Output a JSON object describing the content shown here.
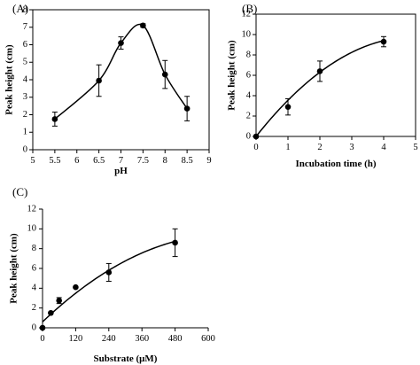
{
  "chart_data": [
    {
      "id": "A",
      "panel_label": "(A)",
      "type": "line",
      "title": "",
      "xlabel": "pH",
      "ylabel": "Peak height (cm)",
      "xlim": [
        5,
        9
      ],
      "ylim": [
        0,
        8
      ],
      "xticks": [
        5,
        5.5,
        6,
        6.5,
        7,
        7.5,
        8,
        8.5,
        9
      ],
      "yticks": [
        0,
        1,
        2,
        3,
        4,
        5,
        6,
        7,
        8
      ],
      "grid": false,
      "legend": "none",
      "series": [
        {
          "points": [
            {
              "x": 5.5,
              "y": 1.75,
              "err": 0.4
            },
            {
              "x": 6.5,
              "y": 3.95,
              "err": 0.9
            },
            {
              "x": 7.0,
              "y": 6.1,
              "err": 0.35
            },
            {
              "x": 7.5,
              "y": 7.1,
              "err": 0.1
            },
            {
              "x": 8.0,
              "y": 4.3,
              "err": 0.8
            },
            {
              "x": 8.5,
              "y": 2.35,
              "err": 0.7
            }
          ],
          "fit": "smooth"
        }
      ]
    },
    {
      "id": "B",
      "panel_label": "(B)",
      "type": "scatter",
      "title": "",
      "xlabel": "Incubation time (h)",
      "ylabel": "Peak height (cm)",
      "xlim": [
        0,
        5
      ],
      "ylim": [
        0,
        12
      ],
      "xticks": [
        0,
        1,
        2,
        3,
        4,
        5
      ],
      "yticks": [
        0,
        2,
        4,
        6,
        8,
        10,
        12
      ],
      "grid": false,
      "legend": "none",
      "series": [
        {
          "points": [
            {
              "x": 0,
              "y": 0,
              "err": 0
            },
            {
              "x": 1,
              "y": 2.9,
              "err": 0.8
            },
            {
              "x": 2,
              "y": 6.4,
              "err": 1.0
            },
            {
              "x": 4,
              "y": 9.3,
              "err": 0.5
            }
          ],
          "fit": {
            "type": "quadratic",
            "coef": [
              0,
              3.95,
              -0.4
            ]
          }
        }
      ]
    },
    {
      "id": "C",
      "panel_label": "(C)",
      "type": "scatter",
      "title": "",
      "xlabel": "Substrate (μM)",
      "ylabel": "Peak height (cm)",
      "xlim": [
        0,
        600
      ],
      "ylim": [
        0,
        12
      ],
      "xticks": [
        0,
        120,
        240,
        360,
        480,
        600
      ],
      "yticks": [
        0,
        2,
        4,
        6,
        8,
        10,
        12
      ],
      "grid": false,
      "legend": "none",
      "series": [
        {
          "points": [
            {
              "x": 0,
              "y": 0,
              "err": 0
            },
            {
              "x": 30,
              "y": 1.5,
              "err": 0
            },
            {
              "x": 60,
              "y": 2.75,
              "err": 0.3
            },
            {
              "x": 120,
              "y": 4.1,
              "err": 0
            },
            {
              "x": 240,
              "y": 5.6,
              "err": 0.9
            },
            {
              "x": 480,
              "y": 8.6,
              "err": 1.4
            }
          ],
          "fit": {
            "type": "quadratic",
            "coef": [
              0.6,
              0.0265,
              -1.99e-05
            ]
          }
        }
      ]
    }
  ]
}
